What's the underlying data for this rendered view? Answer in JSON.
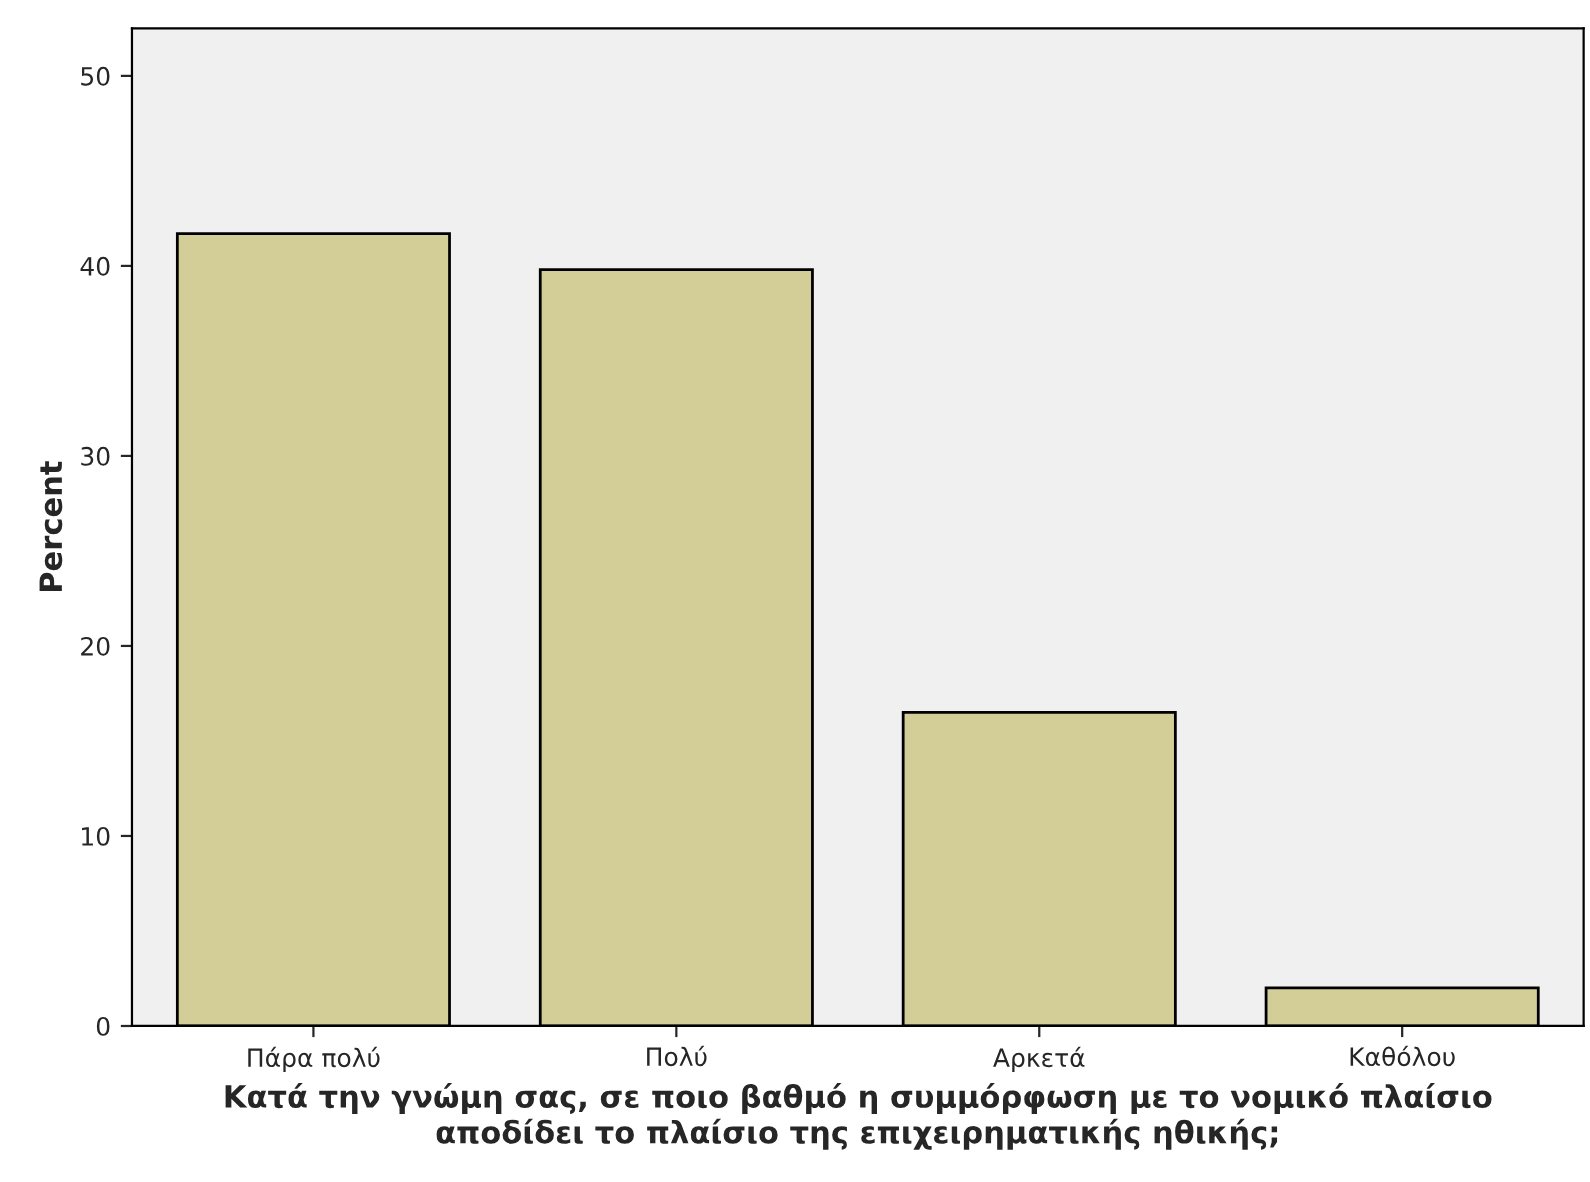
{
  "chart_data": {
    "type": "bar",
    "xlabel": "Κατά την γνώμη σας, σε ποιο βαθμό η συμμόρφωση με το νομικό πλαίσιο\nαποδίδει το πλαίσιο της επιχειρηματικής ηθικής;",
    "ylabel": "Percent",
    "categories": [
      "Πάρα πολύ",
      "Πολύ",
      "Αρκετά",
      "Καθόλου"
    ],
    "values": [
      41.7,
      39.8,
      16.5,
      2.0
    ],
    "color": "#d3ce97",
    "ylim": [
      0,
      52.5
    ],
    "yticks": [
      0,
      10,
      20,
      30,
      40,
      50
    ],
    "grid": false
  }
}
